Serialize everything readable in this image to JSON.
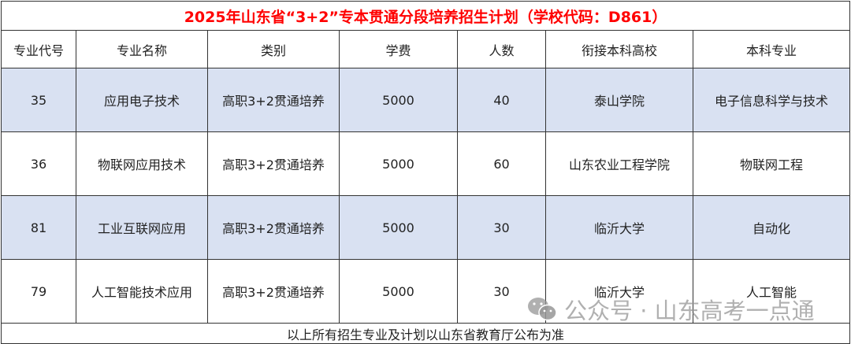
{
  "title": "2025年山东省“3+2”专本贯通分段培养招生计划（学校代码：D861）",
  "headers": [
    "专业代号",
    "专业名称",
    "类别",
    "学费",
    "人数",
    "衔接本科高校",
    "本科专业"
  ],
  "rows": [
    [
      "35",
      "应用电子技术",
      "高职3+2贯通培养",
      "5000",
      "40",
      "泰山学院",
      "电子信息科学与技术"
    ],
    [
      "36",
      "物联网应用技术",
      "高职3+2贯通培养",
      "5000",
      "60",
      "山东农业工程学院",
      "物联网工程"
    ],
    [
      "81",
      "工业互联网应用",
      "高职3+2贯通培养",
      "5000",
      "30",
      "临沂大学",
      "自动化"
    ],
    [
      "79",
      "人工智能技术应用",
      "高职3+2贯通培养",
      "5000",
      "30",
      "临沂大学",
      "人工智能"
    ]
  ],
  "footer": "以上所有招生专业及计划以山东省教育厅公布为准",
  "watermark": "公众号 · 山东高考一点通",
  "colors": {
    "title": "#ff0000",
    "row_highlight": "#d9e1f2"
  }
}
